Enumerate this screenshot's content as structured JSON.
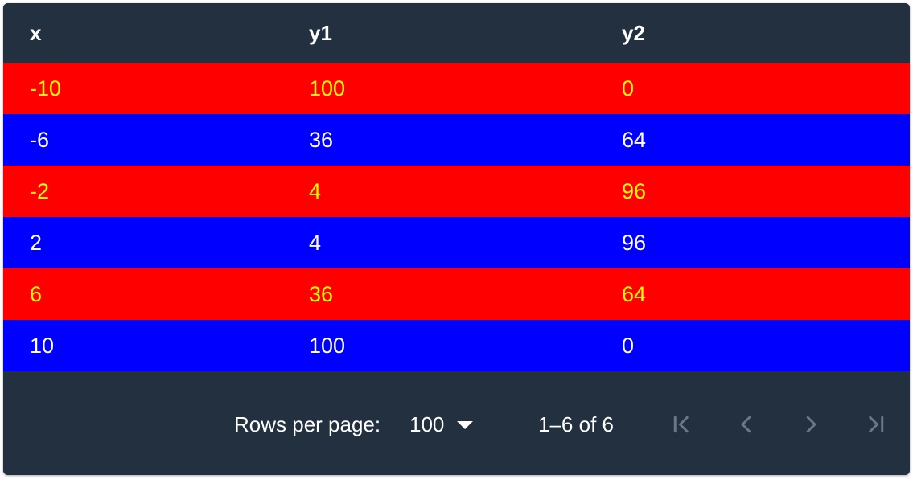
{
  "table": {
    "columns": [
      "x",
      "y1",
      "y2"
    ],
    "rows": [
      {
        "x": "-10",
        "y1": "100",
        "y2": "0"
      },
      {
        "x": "-6",
        "y1": "36",
        "y2": "64"
      },
      {
        "x": "-2",
        "y1": "4",
        "y2": "96"
      },
      {
        "x": "2",
        "y1": "4",
        "y2": "96"
      },
      {
        "x": "6",
        "y1": "36",
        "y2": "64"
      },
      {
        "x": "10",
        "y1": "100",
        "y2": "0"
      }
    ],
    "row_styles": [
      {
        "background": "#ff0000",
        "color": "#ffff00"
      },
      {
        "background": "#0000ff",
        "color": "#ffffff"
      },
      {
        "background": "#ff0000",
        "color": "#ffff00"
      },
      {
        "background": "#0000ff",
        "color": "#ffffff"
      },
      {
        "background": "#ff0000",
        "color": "#ffff00"
      },
      {
        "background": "#0000ff",
        "color": "#ffffff"
      }
    ]
  },
  "pagination": {
    "rows_per_page_label": "Rows per page:",
    "rows_per_page_value": "100",
    "range_text": "1–6 of 6",
    "first_icon": "first-page-icon",
    "prev_icon": "chevron-left-icon",
    "next_icon": "chevron-right-icon",
    "last_icon": "last-page-icon",
    "disabled_icon_color": "#6b7785"
  },
  "colors": {
    "card_background": "#22303f",
    "header_text": "#ffffff"
  }
}
